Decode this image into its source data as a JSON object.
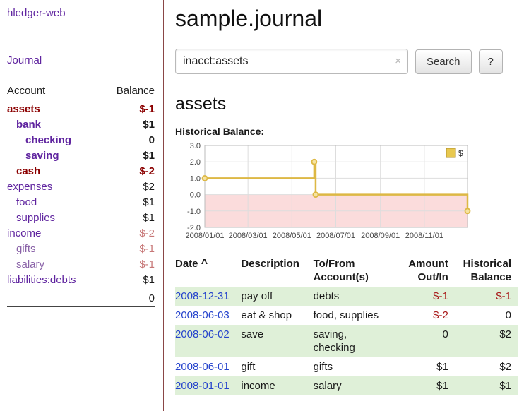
{
  "app": {
    "brand": "hledger-web",
    "nav": {
      "journal": "Journal"
    }
  },
  "colors": {
    "link_purple": "#5f249f",
    "negative_bold": "#8b0000",
    "negative_faded": "#c77777",
    "negative_table": "#a81717",
    "date_link_blue": "#2442cc",
    "text": "#1a1a1a"
  },
  "sidebar": {
    "columns": {
      "account": "Account",
      "balance": "Balance"
    },
    "accounts": [
      {
        "name": "assets",
        "balance": "$-1",
        "indent": 0,
        "bold": true,
        "name_color": "#8b0000",
        "balance_color": "#8b0000"
      },
      {
        "name": "bank",
        "balance": "$1",
        "indent": 1,
        "bold": true,
        "name_color": "#5f249f",
        "balance_color": "#1a1a1a"
      },
      {
        "name": "checking",
        "balance": "0",
        "indent": 2,
        "bold": true,
        "name_color": "#5f249f",
        "balance_color": "#1a1a1a"
      },
      {
        "name": "saving",
        "balance": "$1",
        "indent": 2,
        "bold": true,
        "name_color": "#5f249f",
        "balance_color": "#1a1a1a"
      },
      {
        "name": "cash",
        "balance": "$-2",
        "indent": 1,
        "bold": true,
        "name_color": "#8b0000",
        "balance_color": "#8b0000"
      },
      {
        "name": "expenses",
        "balance": "$2",
        "indent": 0,
        "bold": false,
        "name_color": "#5f249f",
        "balance_color": "#1a1a1a"
      },
      {
        "name": "food",
        "balance": "$1",
        "indent": 1,
        "bold": false,
        "name_color": "#5f249f",
        "balance_color": "#1a1a1a"
      },
      {
        "name": "supplies",
        "balance": "$1",
        "indent": 1,
        "bold": false,
        "name_color": "#5f249f",
        "balance_color": "#1a1a1a"
      },
      {
        "name": "income",
        "balance": "$-2",
        "indent": 0,
        "bold": false,
        "name_color": "#5f249f",
        "balance_color": "#c77777"
      },
      {
        "name": "gifts",
        "balance": "$-1",
        "indent": 1,
        "bold": false,
        "name_color": "#8a63a8",
        "balance_color": "#c77777"
      },
      {
        "name": "salary",
        "balance": "$-1",
        "indent": 1,
        "bold": false,
        "name_color": "#8a63a8",
        "balance_color": "#c77777"
      },
      {
        "name": "liabilities:debts",
        "balance": "$1",
        "indent": 0,
        "bold": false,
        "name_color": "#5f249f",
        "balance_color": "#1a1a1a"
      }
    ],
    "total": "0"
  },
  "main": {
    "title": "sample.journal",
    "search": {
      "value": "inacct:assets",
      "clear": "×",
      "submit": "Search",
      "help": "?"
    },
    "account_heading": "assets"
  },
  "chart_data": {
    "type": "line",
    "step": true,
    "title": "Historical Balance:",
    "series": [
      {
        "name": "$",
        "color": "#ddb844",
        "points": [
          [
            "2008-01-01",
            1
          ],
          [
            "2008-06-01",
            2
          ],
          [
            "2008-06-03",
            0
          ],
          [
            "2008-12-31",
            -1
          ]
        ]
      }
    ],
    "x_range": [
      "2008-01-01",
      "2008-12-31"
    ],
    "ylim": [
      -2,
      3
    ],
    "y_ticks": [
      3,
      2,
      1,
      0,
      -1,
      -2
    ],
    "y_tick_labels": [
      "3.0",
      "2.0",
      "1.0",
      "0.0",
      "-1.0",
      "-2.0"
    ],
    "x_tick_labels": [
      "2008/01/01",
      "2008/03/01",
      "2008/05/01",
      "2008/07/01",
      "2008/09/01",
      "2008/11/01"
    ],
    "grid": true,
    "negative_region_color": "#fbdcdc",
    "legend": {
      "label": "$",
      "position": "top-right",
      "swatch_color": "#e8c84f"
    }
  },
  "register": {
    "row_shade_color": "#dff0d8",
    "headers": {
      "date": "Date",
      "sort_indicator": "^",
      "description": "Description",
      "accounts_line1": "To/From",
      "accounts_line2": "Account(s)",
      "amount_line1": "Amount",
      "amount_line2": "Out/In",
      "balance_line1": "Historical",
      "balance_line2": "Balance"
    },
    "rows": [
      {
        "date": "2008-12-31",
        "description": "pay off",
        "accounts": "debts",
        "amount": "$-1",
        "amount_color": "#a81717",
        "balance": "$-1",
        "balance_color": "#a81717",
        "shaded": true
      },
      {
        "date": "2008-06-03",
        "description": "eat & shop",
        "accounts": "food, supplies",
        "amount": "$-2",
        "amount_color": "#a81717",
        "balance": "0",
        "balance_color": "#1a1a1a",
        "shaded": false
      },
      {
        "date": "2008-06-02",
        "description": "save",
        "accounts": "saving,\nchecking",
        "amount": "0",
        "amount_color": "#1a1a1a",
        "balance": "$2",
        "balance_color": "#1a1a1a",
        "shaded": true
      },
      {
        "date": "2008-06-01",
        "description": "gift",
        "accounts": "gifts",
        "amount": "$1",
        "amount_color": "#1a1a1a",
        "balance": "$2",
        "balance_color": "#1a1a1a",
        "shaded": false
      },
      {
        "date": "2008-01-01",
        "description": "income",
        "accounts": "salary",
        "amount": "$1",
        "amount_color": "#1a1a1a",
        "balance": "$1",
        "balance_color": "#1a1a1a",
        "shaded": true
      }
    ]
  }
}
